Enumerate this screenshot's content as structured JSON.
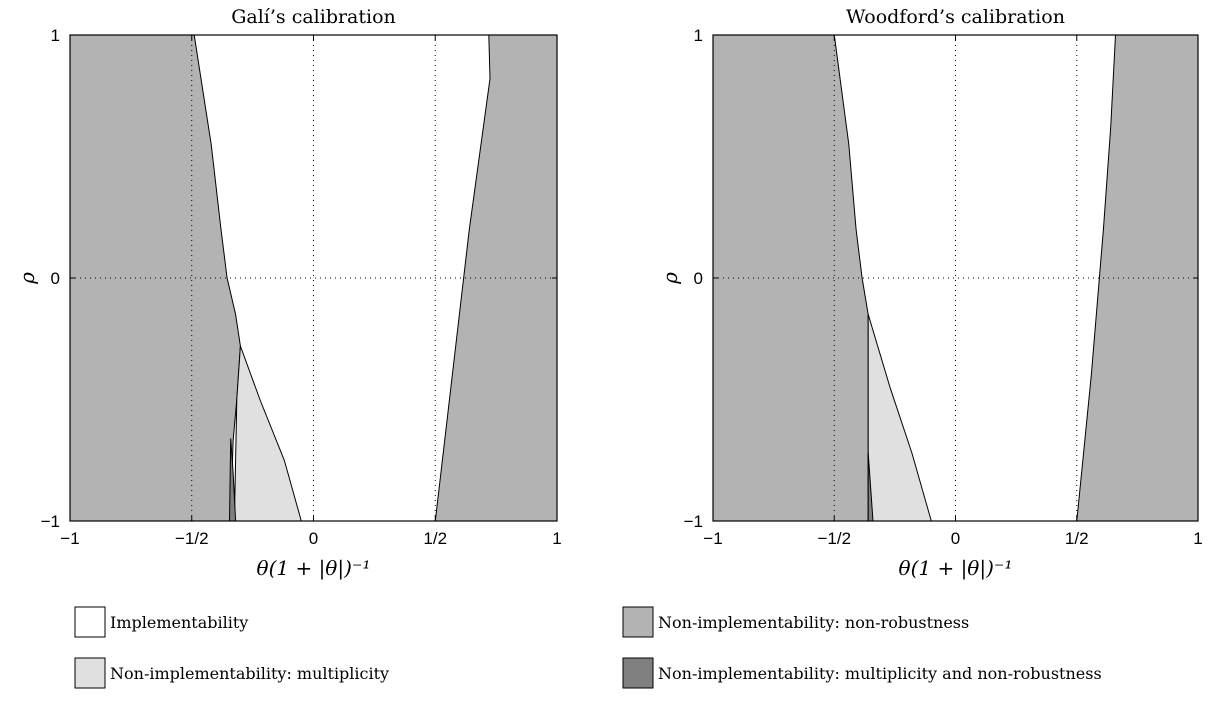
{
  "colors": {
    "implementability": "#ffffff",
    "multiplicity": "#e0e0e0",
    "non_robustness": "#b3b3b3",
    "multiplicity_and_non_robustness": "#808080"
  },
  "legend": [
    {
      "key": "implementability",
      "label": "Implementability"
    },
    {
      "key": "multiplicity",
      "label": "Non-implementability: multiplicity"
    },
    {
      "key": "non_robustness",
      "label": "Non-implementability: non-robustness"
    },
    {
      "key": "multiplicity_and_non_robustness",
      "label": "Non-implementability: multiplicity and non-robustness"
    }
  ],
  "chart_data": [
    {
      "type": "area",
      "title": "Galí’s calibration",
      "xlabel": "θ(1 + |θ|)⁻¹",
      "ylabel": "ρ",
      "xlim": [
        -1,
        1
      ],
      "ylim": [
        -1,
        1
      ],
      "xticks": [
        {
          "value": -1,
          "label": "−1"
        },
        {
          "value": -0.5,
          "label": "−1/2"
        },
        {
          "value": 0,
          "label": "0"
        },
        {
          "value": 0.5,
          "label": "1/2"
        },
        {
          "value": 1,
          "label": "1"
        }
      ],
      "yticks": [
        {
          "value": -1,
          "label": "−1"
        },
        {
          "value": 0,
          "label": "0"
        },
        {
          "value": 1,
          "label": "1"
        }
      ],
      "grid": true,
      "regions": [
        {
          "key": "non_robustness",
          "points": [
            [
              -1,
              1
            ],
            [
              -0.49,
              1
            ],
            [
              -0.42,
              0.55
            ],
            [
              -0.38,
              0.2
            ],
            [
              -0.355,
              0
            ],
            [
              -0.32,
              -0.15
            ],
            [
              -0.3,
              -0.28
            ],
            [
              -0.315,
              -0.5
            ],
            [
              -0.33,
              -0.67
            ],
            [
              -0.34,
              -1
            ],
            [
              -1,
              -1
            ]
          ]
        },
        {
          "key": "multiplicity",
          "points": [
            [
              -0.3,
              -0.28
            ],
            [
              -0.22,
              -0.5
            ],
            [
              -0.12,
              -0.75
            ],
            [
              -0.05,
              -1
            ],
            [
              -0.325,
              -1
            ],
            [
              -0.315,
              -0.5
            ]
          ]
        },
        {
          "key": "multiplicity_and_non_robustness",
          "points": [
            [
              -0.34,
              -0.66
            ],
            [
              -0.33,
              -0.8
            ],
            [
              -0.32,
              -1
            ],
            [
              -0.345,
              -1
            ]
          ]
        },
        {
          "key": "non_robustness",
          "points": [
            [
              0.5,
              -1
            ],
            [
              0.57,
              -0.4
            ],
            [
              0.64,
              0.2
            ],
            [
              0.725,
              0.82
            ],
            [
              0.72,
              1
            ],
            [
              1,
              1
            ],
            [
              1,
              -1
            ]
          ]
        }
      ]
    },
    {
      "type": "area",
      "title": "Woodford’s calibration",
      "xlabel": "θ(1 + |θ|)⁻¹",
      "ylabel": "ρ",
      "xlim": [
        -1,
        1
      ],
      "ylim": [
        -1,
        1
      ],
      "xticks": [
        {
          "value": -1,
          "label": "−1"
        },
        {
          "value": -0.5,
          "label": "−1/2"
        },
        {
          "value": 0,
          "label": "0"
        },
        {
          "value": 0.5,
          "label": "1/2"
        },
        {
          "value": 1,
          "label": "1"
        }
      ],
      "yticks": [
        {
          "value": -1,
          "label": "−1"
        },
        {
          "value": 0,
          "label": "0"
        },
        {
          "value": 1,
          "label": "1"
        }
      ],
      "grid": true,
      "regions": [
        {
          "key": "non_robustness",
          "points": [
            [
              -1,
              1
            ],
            [
              -0.5,
              1
            ],
            [
              -0.44,
              0.55
            ],
            [
              -0.41,
              0.2
            ],
            [
              -0.385,
              0
            ],
            [
              -0.36,
              -0.15
            ],
            [
              -0.36,
              -1
            ],
            [
              -1,
              -1
            ]
          ]
        },
        {
          "key": "multiplicity",
          "points": [
            [
              -0.36,
              -0.15
            ],
            [
              -0.27,
              -0.45
            ],
            [
              -0.18,
              -0.72
            ],
            [
              -0.1,
              -1
            ],
            [
              -0.36,
              -1
            ]
          ]
        },
        {
          "key": "multiplicity_and_non_robustness",
          "points": [
            [
              -0.36,
              -0.72
            ],
            [
              -0.35,
              -0.86
            ],
            [
              -0.34,
              -1
            ],
            [
              -0.36,
              -1
            ]
          ]
        },
        {
          "key": "non_robustness",
          "points": [
            [
              0.5,
              -1
            ],
            [
              0.56,
              -0.4
            ],
            [
              0.61,
              0.2
            ],
            [
              0.64,
              0.62
            ],
            [
              0.66,
              1
            ],
            [
              1,
              1
            ],
            [
              1,
              -1
            ]
          ]
        }
      ]
    }
  ]
}
